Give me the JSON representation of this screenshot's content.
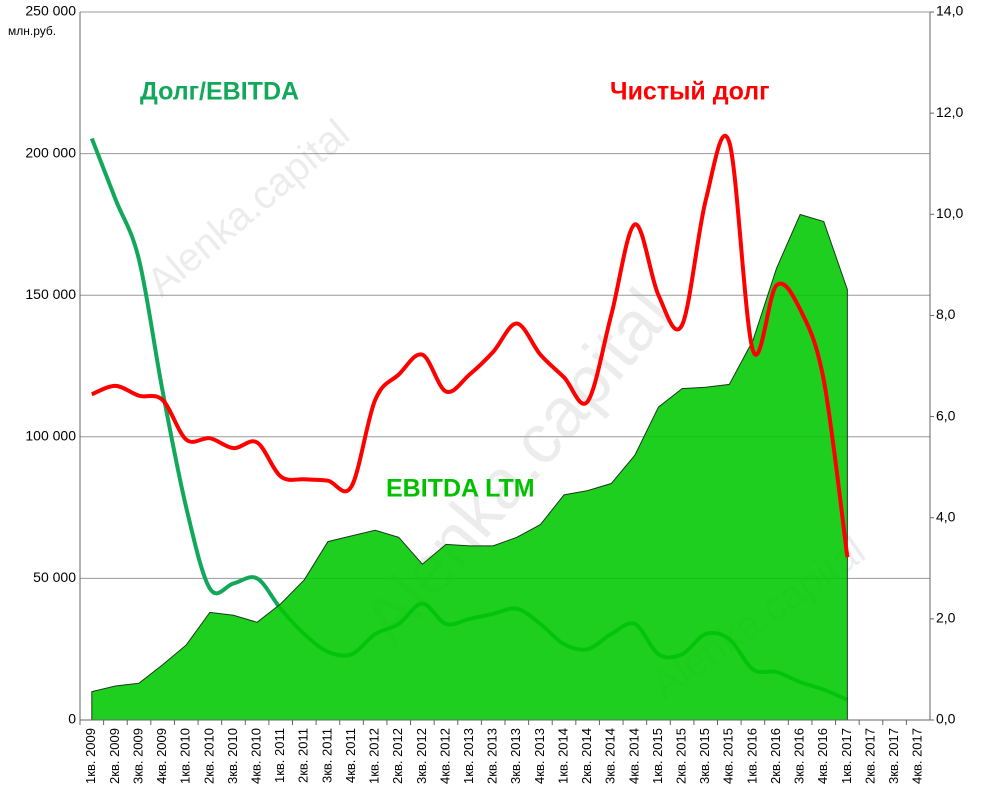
{
  "chart_data": {
    "type": "line",
    "unit_label": "млн.руб.",
    "watermark": "Alenka.capital",
    "annotation": "EBITDA LTM",
    "categories": [
      "1кв. 2009",
      "2кв. 2009",
      "3кв. 2009",
      "4кв. 2009",
      "1кв. 2010",
      "2кв. 2010",
      "3кв. 2010",
      "4кв. 2010",
      "1кв. 2011",
      "2кв. 2011",
      "3кв. 2011",
      "4кв. 2011",
      "1кв. 2012",
      "2кв. 2012",
      "3кв. 2012",
      "4кв. 2012",
      "1кв. 2013",
      "2кв. 2013",
      "3кв. 2013",
      "4кв. 2013",
      "1кв. 2014",
      "2кв. 2014",
      "3кв. 2014",
      "4кв. 2014",
      "1кв. 2015",
      "2кв. 2015",
      "3кв. 2015",
      "4кв. 2015",
      "1кв. 2016",
      "2кв. 2016",
      "3кв. 2016",
      "4кв. 2016",
      "1кв. 2017",
      "2кв. 2017",
      "3кв. 2017",
      "4кв. 2017"
    ],
    "series": [
      {
        "name": "EBITDA LTM",
        "type": "area",
        "axis": "y",
        "color": "#00c800",
        "values": [
          10000,
          12000,
          13000,
          19500,
          26500,
          38000,
          37000,
          34500,
          41000,
          49500,
          63000,
          65000,
          67000,
          64500,
          55000,
          62000,
          61500,
          61500,
          64500,
          69000,
          79500,
          81000,
          83500,
          93500,
          110500,
          117000,
          117500,
          118500,
          134000,
          159500,
          178500,
          176000,
          152000,
          null,
          null,
          null
        ]
      },
      {
        "name": "Долг/EBITDA",
        "type": "line",
        "axis": "y2",
        "color": "#12a85a",
        "values": [
          11.5,
          10.3,
          9.1,
          6.5,
          4.2,
          2.6,
          2.7,
          2.8,
          2.2,
          1.7,
          1.35,
          1.3,
          1.7,
          1.9,
          2.3,
          1.9,
          2.0,
          2.1,
          2.2,
          1.9,
          1.5,
          1.4,
          1.7,
          1.9,
          1.3,
          1.3,
          1.7,
          1.6,
          1.0,
          0.95,
          0.75,
          0.6,
          0.4,
          null,
          null,
          null
        ]
      },
      {
        "name": "Чистый долг",
        "type": "line",
        "axis": "y",
        "color": "#ff0000",
        "values": [
          115000,
          118000,
          114500,
          113000,
          99000,
          99500,
          96000,
          98000,
          86000,
          85000,
          84500,
          82500,
          113000,
          122000,
          129000,
          116000,
          122000,
          130000,
          140000,
          129000,
          121000,
          112500,
          143000,
          175000,
          150000,
          139500,
          183500,
          204000,
          130500,
          153500,
          145000,
          120000,
          57500,
          null,
          null,
          null
        ]
      }
    ],
    "ylim": [
      0,
      250000
    ],
    "yticks": [
      0,
      {
        "value": 50000,
        "label": "50 000"
      },
      {
        "value": 100000,
        "label": "100 000"
      },
      {
        "value": 150000,
        "label": "150 000"
      },
      {
        "value": 200000,
        "label": "200 000"
      },
      {
        "value": 250000,
        "label": "250 000"
      }
    ],
    "y2lim": [
      0,
      14
    ],
    "y2ticks": [
      {
        "value": 0,
        "label": "0,0"
      },
      {
        "value": 2,
        "label": "2,0"
      },
      {
        "value": 4,
        "label": "4,0"
      },
      {
        "value": 6,
        "label": "6,0"
      },
      {
        "value": 8,
        "label": "8,0"
      },
      {
        "value": 10,
        "label": "10,0"
      },
      {
        "value": 12,
        "label": "12,0"
      },
      {
        "value": 14,
        "label": "14,0"
      }
    ],
    "grid": true
  }
}
